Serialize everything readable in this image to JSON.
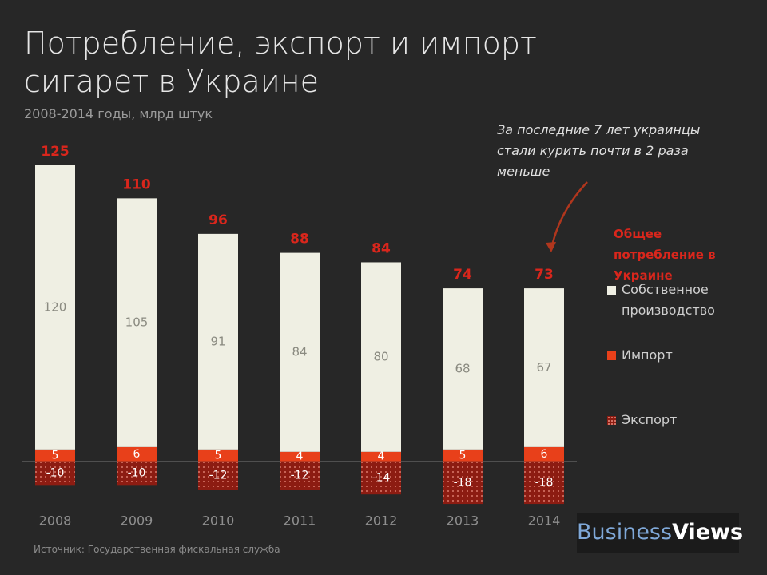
{
  "chart_data": {
    "type": "bar",
    "title": "Потребление, экспорт и импорт сигарет в Украине",
    "subtitle": "2008-2014 годы, млрд штук",
    "annotation": "За последние 7 лет украинцы стали курить почти в 2 раза меньше",
    "legend_title": "Общее потребление в Украине",
    "source": "Источник: Государственная фискальная служба",
    "logo": [
      "Business",
      "Views"
    ],
    "categories": [
      "2008",
      "2009",
      "2010",
      "2011",
      "2012",
      "2013",
      "2014"
    ],
    "series": [
      {
        "name": "Собственное производство",
        "color": "#efefe3",
        "values": [
          120,
          105,
          91,
          84,
          80,
          68,
          67
        ]
      },
      {
        "name": "Импорт",
        "color": "#e8401a",
        "values": [
          5,
          6,
          5,
          4,
          4,
          5,
          6
        ]
      },
      {
        "name": "Экспорт",
        "color": "#8c1c12",
        "values": [
          -10,
          -10,
          -12,
          -12,
          -14,
          -18,
          -18
        ]
      }
    ],
    "totals": [
      125,
      110,
      96,
      88,
      84,
      74,
      73
    ],
    "ylim": [
      -20,
      130
    ]
  }
}
